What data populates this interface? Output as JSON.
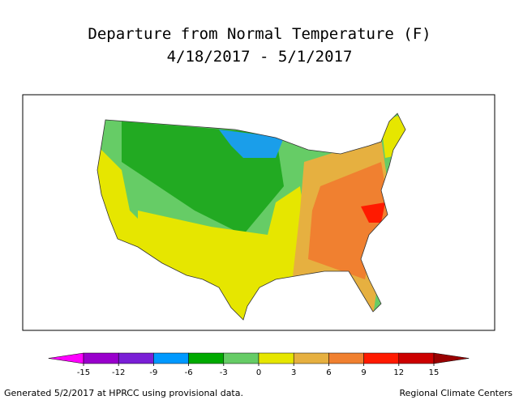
{
  "title": [
    "Departure from Normal Temperature (F)",
    "4/18/2017 - 5/1/2017"
  ],
  "legend": {
    "ticks": [
      -15,
      -12,
      -9,
      -6,
      -3,
      0,
      3,
      6,
      9,
      12,
      15
    ],
    "colors": [
      "#ff00ff",
      "#9900cc",
      "#7a1fd6",
      "#0099ff",
      "#00aa00",
      "#66cc66",
      "#e6e600",
      "#e6b040",
      "#f08030",
      "#ff1a00",
      "#cc0000",
      "#990000"
    ]
  },
  "footer": {
    "left": "Generated 5/2/2017 at HPRCC using provisional data.",
    "right": "Regional Climate Centers"
  }
}
